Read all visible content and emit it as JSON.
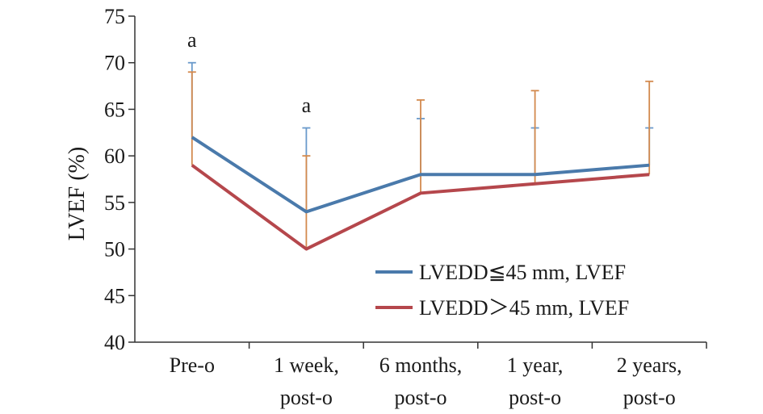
{
  "chart_data": {
    "type": "line",
    "title": "",
    "ylabel": "LVEF (%)",
    "xlabel": "",
    "ylim": [
      40,
      75
    ],
    "yticks": [
      40,
      45,
      50,
      55,
      60,
      65,
      70,
      75
    ],
    "categories": [
      [
        "Pre-o"
      ],
      [
        "1 week,",
        "post-o"
      ],
      [
        "6 months,",
        "post-o"
      ],
      [
        "1 year,",
        "post-o"
      ],
      [
        "2 years,",
        "post-o"
      ]
    ],
    "series": [
      {
        "name": "LVEDD≦45 mm, LVEF",
        "color": "#4a7aab",
        "errcolor": "#6a9acb",
        "values": [
          62,
          54,
          58,
          58,
          59
        ],
        "err_upper": [
          70,
          63,
          64,
          63,
          63
        ]
      },
      {
        "name": "LVEDD＞45 mm, LVEF",
        "color": "#b5474c",
        "errcolor": "#d38a4e",
        "values": [
          59,
          50,
          56,
          57,
          58
        ],
        "err_upper": [
          69,
          60,
          66,
          67,
          68
        ]
      }
    ],
    "annotations": [
      {
        "category_index": 0,
        "text": "a",
        "y": 71
      },
      {
        "category_index": 1,
        "text": "a",
        "y": 64
      }
    ],
    "legend_position": "bottom-right",
    "grid": false
  }
}
